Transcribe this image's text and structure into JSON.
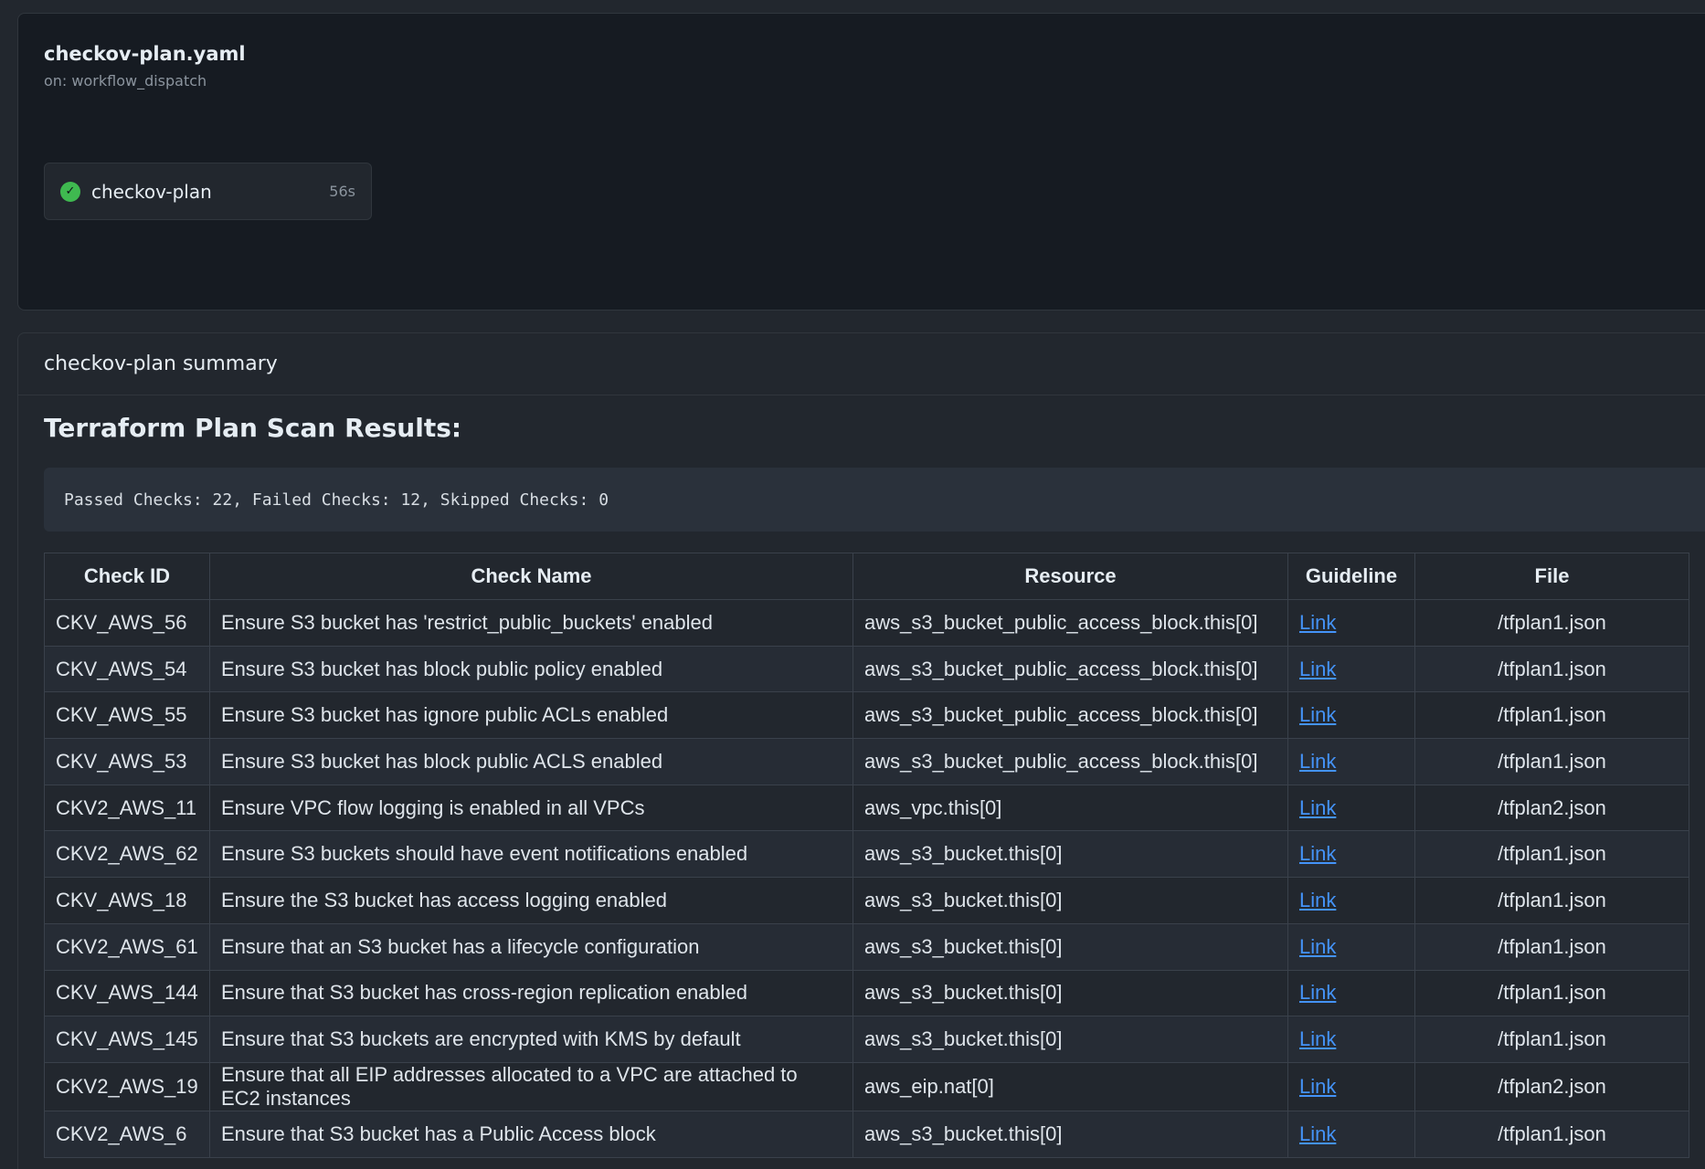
{
  "workflow": {
    "title": "checkov-plan.yaml",
    "trigger": "on: workflow_dispatch"
  },
  "job": {
    "name": "checkov-plan",
    "duration": "56s",
    "status": "success",
    "status_icon": "check-circle-icon",
    "status_color": "#3fb950"
  },
  "summary": {
    "header": "checkov-plan summary",
    "heading": "Terraform Plan Scan Results:",
    "counts": "Passed Checks: 22, Failed Checks: 12, Skipped Checks: 0",
    "columns": [
      "Check ID",
      "Check Name",
      "Resource",
      "Guideline",
      "File"
    ],
    "rows": [
      {
        "id": "CKV_AWS_56",
        "name": "Ensure S3 bucket has 'restrict_public_buckets' enabled",
        "resource": "aws_s3_bucket_public_access_block.this[0]",
        "guideline": "Link",
        "file": "/tfplan1.json"
      },
      {
        "id": "CKV_AWS_54",
        "name": "Ensure S3 bucket has block public policy enabled",
        "resource": "aws_s3_bucket_public_access_block.this[0]",
        "guideline": "Link",
        "file": "/tfplan1.json"
      },
      {
        "id": "CKV_AWS_55",
        "name": "Ensure S3 bucket has ignore public ACLs enabled",
        "resource": "aws_s3_bucket_public_access_block.this[0]",
        "guideline": "Link",
        "file": "/tfplan1.json"
      },
      {
        "id": "CKV_AWS_53",
        "name": "Ensure S3 bucket has block public ACLS enabled",
        "resource": "aws_s3_bucket_public_access_block.this[0]",
        "guideline": "Link",
        "file": "/tfplan1.json"
      },
      {
        "id": "CKV2_AWS_11",
        "name": "Ensure VPC flow logging is enabled in all VPCs",
        "resource": "aws_vpc.this[0]",
        "guideline": "Link",
        "file": "/tfplan2.json"
      },
      {
        "id": "CKV2_AWS_62",
        "name": "Ensure S3 buckets should have event notifications enabled",
        "resource": "aws_s3_bucket.this[0]",
        "guideline": "Link",
        "file": "/tfplan1.json"
      },
      {
        "id": "CKV_AWS_18",
        "name": "Ensure the S3 bucket has access logging enabled",
        "resource": "aws_s3_bucket.this[0]",
        "guideline": "Link",
        "file": "/tfplan1.json"
      },
      {
        "id": "CKV2_AWS_61",
        "name": "Ensure that an S3 bucket has a lifecycle configuration",
        "resource": "aws_s3_bucket.this[0]",
        "guideline": "Link",
        "file": "/tfplan1.json"
      },
      {
        "id": "CKV_AWS_144",
        "name": "Ensure that S3 bucket has cross-region replication enabled",
        "resource": "aws_s3_bucket.this[0]",
        "guideline": "Link",
        "file": "/tfplan1.json"
      },
      {
        "id": "CKV_AWS_145",
        "name": "Ensure that S3 buckets are encrypted with KMS by default",
        "resource": "aws_s3_bucket.this[0]",
        "guideline": "Link",
        "file": "/tfplan1.json"
      },
      {
        "id": "CKV2_AWS_19",
        "name": "Ensure that all EIP addresses allocated to a VPC are attached to EC2 instances",
        "resource": "aws_eip.nat[0]",
        "guideline": "Link",
        "file": "/tfplan2.json"
      },
      {
        "id": "CKV2_AWS_6",
        "name": "Ensure that S3 bucket has a Public Access block",
        "resource": "aws_s3_bucket.this[0]",
        "guideline": "Link",
        "file": "/tfplan1.json"
      }
    ]
  }
}
